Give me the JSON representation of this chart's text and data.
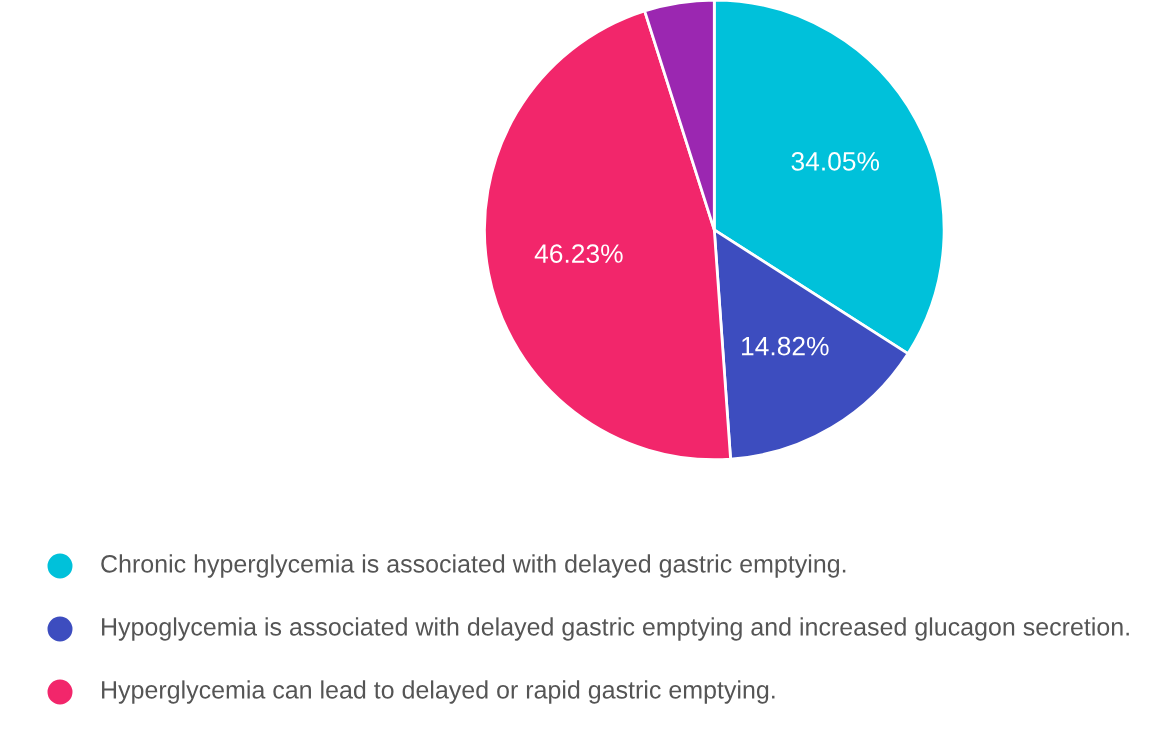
{
  "chart_data": {
    "type": "pie",
    "categories": [
      "Chronic hyperglycemia is associated with delayed gastric emptying.",
      "Hypoglycemia is associated with delayed gastric emptying and increased glucagon secretion.",
      "Hyperglycemia can lead to delayed or rapid gastric emptying.",
      null
    ],
    "values": [
      34.05,
      14.82,
      46.23,
      4.9
    ],
    "colors": [
      "#00c1da",
      "#3d4dbf",
      "#f2266b",
      "#9b27b1"
    ],
    "value_labels": [
      "34.05%",
      "14.82%",
      "46.23%",
      null
    ],
    "legend": "bottom"
  }
}
